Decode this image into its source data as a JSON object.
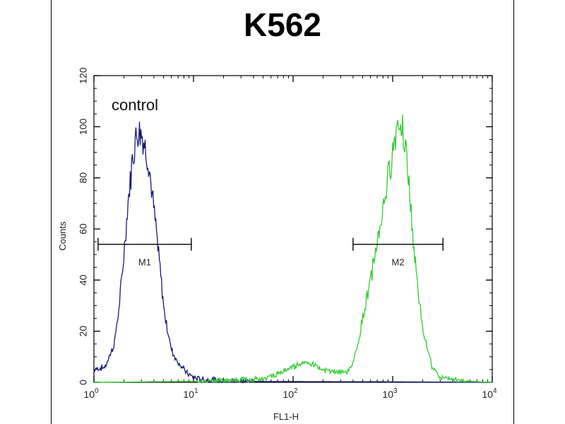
{
  "chart_data": {
    "type": "histogram",
    "title": "K562",
    "xlabel": "FL1-H",
    "ylabel": "Counts",
    "xscale": "log",
    "xlim": [
      1,
      10000
    ],
    "ylim": [
      0,
      120
    ],
    "xticks": [
      {
        "base": "10",
        "exp": "0"
      },
      {
        "base": "10",
        "exp": "1"
      },
      {
        "base": "10",
        "exp": "2"
      },
      {
        "base": "10",
        "exp": "3"
      },
      {
        "base": "10",
        "exp": "4"
      }
    ],
    "yticks": [
      "0",
      "20",
      "40",
      "60",
      "80",
      "100",
      "120"
    ],
    "annotations": {
      "control": "control"
    },
    "markers": [
      {
        "label": "M1",
        "x_start": 1.1,
        "x_end": 9.5,
        "y": 54
      },
      {
        "label": "M2",
        "x_start": 400,
        "x_end": 3200,
        "y": 54
      }
    ],
    "series": [
      {
        "name": "control",
        "color": "#1a1a7a",
        "x": [
          1.0,
          1.3,
          1.6,
          1.8,
          2.0,
          2.2,
          2.4,
          2.6,
          2.8,
          3.0,
          3.2,
          3.5,
          3.8,
          4.2,
          4.6,
          5.0,
          5.5,
          6.0,
          6.5,
          7.0,
          8.0,
          9.0,
          10.0,
          11.0,
          13.0,
          16.0,
          20.0,
          30.0,
          50.0,
          100.0,
          1000.0,
          10000.0
        ],
        "y": [
          5,
          6,
          15,
          30,
          50,
          70,
          85,
          95,
          99,
          98,
          93,
          88,
          75,
          60,
          45,
          30,
          20,
          13,
          10,
          8,
          5,
          3,
          2,
          1.5,
          1,
          1,
          0.5,
          0.5,
          0.3,
          0.3,
          0.2,
          0
        ]
      },
      {
        "name": "",
        "color": "#33cc33",
        "x": [
          1.0,
          20.0,
          50.0,
          80.0,
          100.0,
          130.0,
          160.0,
          200.0,
          250.0,
          300.0,
          350.0,
          400.0,
          450.0,
          500.0,
          600.0,
          700.0,
          800.0,
          900.0,
          1000.0,
          1100.0,
          1200.0,
          1300.0,
          1400.0,
          1500.0,
          1700.0,
          2000.0,
          2500.0,
          3000.0,
          5000.0,
          10000.0
        ],
        "y": [
          0,
          0.5,
          1.5,
          4,
          6,
          8,
          7,
          5,
          4,
          4,
          4,
          8,
          15,
          25,
          40,
          55,
          68,
          80,
          90,
          100,
          104,
          98,
          85,
          70,
          45,
          20,
          6,
          2,
          0.5,
          0
        ]
      }
    ]
  }
}
